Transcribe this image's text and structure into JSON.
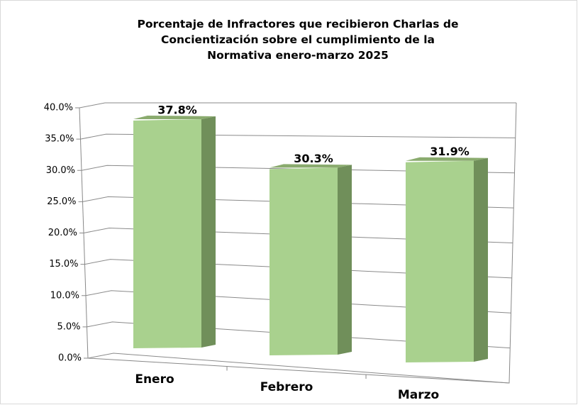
{
  "chart_data": {
    "type": "bar3d",
    "title": "Porcentaje de Infractores que recibieron Charlas de Concientización sobre el cumplimiento de la Normativa enero-marzo 2025",
    "categories": [
      "Enero",
      "Febrero",
      "Marzo"
    ],
    "values": [
      37.8,
      30.3,
      31.9
    ],
    "value_labels": [
      "37.8%",
      "30.3%",
      "31.9%"
    ],
    "color": "#a9d18e",
    "ylim": [
      0,
      40
    ],
    "yticks": [
      {
        "value": 0,
        "label": "0.0%"
      },
      {
        "value": 5,
        "label": "5.0%"
      },
      {
        "value": 10,
        "label": "10.0%"
      },
      {
        "value": 15,
        "label": "15.0%"
      },
      {
        "value": 20,
        "label": "20.0%"
      },
      {
        "value": 25,
        "label": "25.0%"
      },
      {
        "value": 30,
        "label": "30.0%"
      },
      {
        "value": 35,
        "label": "35.0%"
      },
      {
        "value": 40,
        "label": "40.0%"
      }
    ],
    "grid": true
  }
}
